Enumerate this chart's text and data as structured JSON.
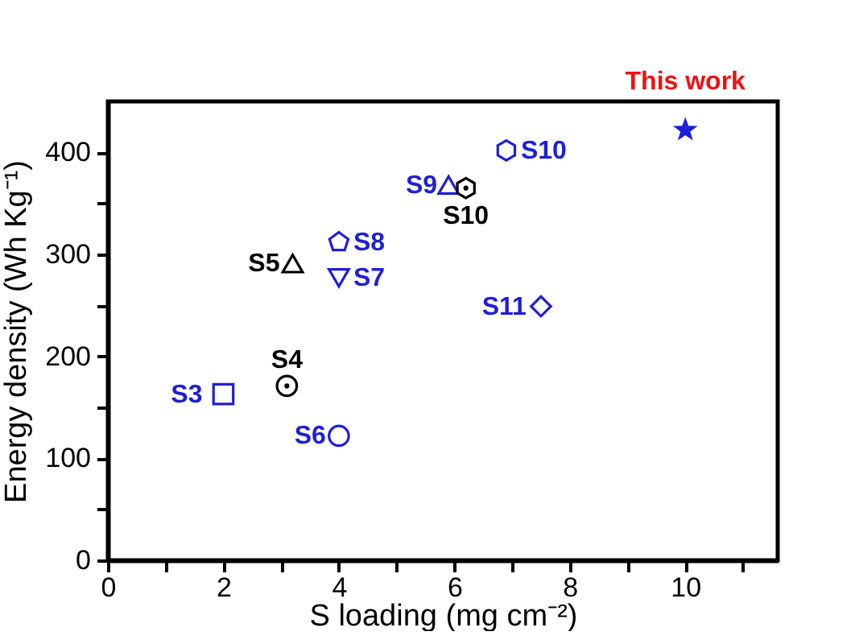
{
  "chart_data": {
    "type": "scatter",
    "xlabel": "S loading (mg cm⁻²)",
    "ylabel": "Energy density (Wh Kg⁻¹)",
    "xlim": [
      0,
      11.6
    ],
    "ylim": [
      0,
      450
    ],
    "xticks": [
      0,
      {
        "value": 1,
        "label": null
      },
      2,
      {
        "value": 3,
        "label": null
      },
      4,
      {
        "value": 5,
        "label": null
      },
      6,
      {
        "value": 7,
        "label": null
      },
      8,
      {
        "value": 9,
        "label": null
      },
      10,
      {
        "value": 11,
        "label": null
      }
    ],
    "yticks": [
      0,
      {
        "value": 50,
        "label": null
      },
      100,
      {
        "value": 150,
        "label": null
      },
      200,
      {
        "value": 250,
        "label": null
      },
      300,
      {
        "value": 350,
        "label": null
      },
      400
    ],
    "grid": false,
    "series": [
      {
        "name": "S3",
        "color": "#1f1fd6",
        "marker": "square",
        "x": [
          2.0
        ],
        "values": [
          163
        ]
      },
      {
        "name": "S4",
        "color": "#000000",
        "marker": "circle-dot",
        "x": [
          3.1
        ],
        "values": [
          171
        ]
      },
      {
        "name": "S5",
        "color": "#000000",
        "marker": "triangle",
        "x": [
          3.2
        ],
        "values": [
          291
        ]
      },
      {
        "name": "S6",
        "color": "#1f1fd6",
        "marker": "circle",
        "x": [
          4.0
        ],
        "values": [
          122
        ]
      },
      {
        "name": "S7",
        "color": "#1f1fd6",
        "marker": "triangle-down",
        "x": [
          4.0
        ],
        "values": [
          277
        ]
      },
      {
        "name": "S8",
        "color": "#1f1fd6",
        "x": [
          4.0
        ],
        "values": [
          312
        ]
      },
      {
        "name": "S9",
        "color": "#1f1fd6",
        "marker": "triangle",
        "x": [
          5.9
        ],
        "values": [
          368
        ]
      },
      {
        "name": "S10",
        "color": "#000000",
        "x": [
          6.2
        ],
        "values": [
          365
        ]
      },
      {
        "name": "S10",
        "color": "#1f1fd6",
        "x": [
          6.9
        ],
        "values": [
          402
        ]
      },
      {
        "name": "S11",
        "color": "#1f1fd6",
        "marker": "diamond",
        "x": [
          7.5
        ],
        "values": [
          249
        ]
      },
      {
        "name": "This work",
        "color": "#1f1fd6",
        "marker": "star",
        "x": [
          10.0
        ],
        "values": [
          422
        ]
      }
    ]
  }
}
